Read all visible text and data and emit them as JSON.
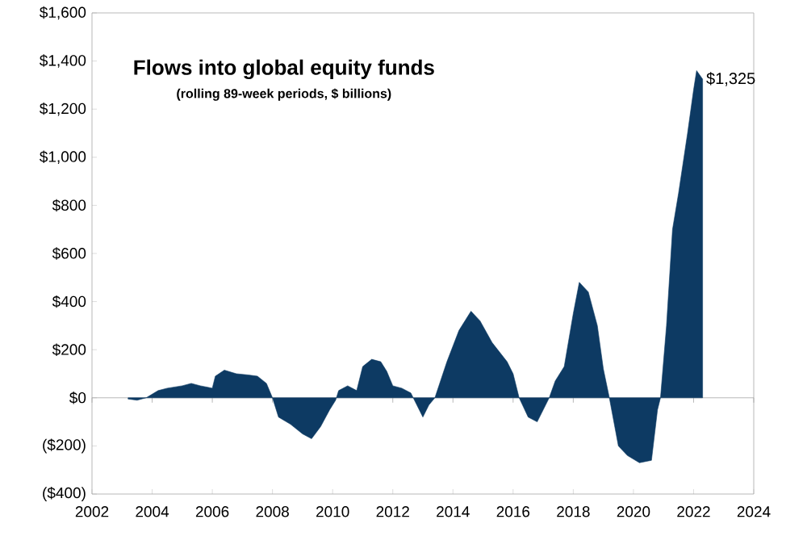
{
  "chart_data": {
    "type": "area",
    "title": "Flows into global equity funds",
    "subtitle": "(rolling 89-week periods, $ billions)",
    "x": [
      2003.2,
      2003.5,
      2003.8,
      2004.2,
      2004.5,
      2005.0,
      2005.3,
      2005.6,
      2006.0,
      2006.1,
      2006.4,
      2006.8,
      2007.2,
      2007.5,
      2007.8,
      2008.0,
      2008.2,
      2008.6,
      2009.0,
      2009.3,
      2009.6,
      2009.9,
      2010.1,
      2010.2,
      2010.5,
      2010.8,
      2011.0,
      2011.3,
      2011.6,
      2011.8,
      2012.0,
      2012.3,
      2012.6,
      2012.8,
      2013.0,
      2013.2,
      2013.4,
      2013.8,
      2014.2,
      2014.6,
      2014.9,
      2015.3,
      2015.8,
      2016.0,
      2016.2,
      2016.5,
      2016.8,
      2017.0,
      2017.2,
      2017.4,
      2017.7,
      2018.0,
      2018.2,
      2018.5,
      2018.8,
      2019.0,
      2019.2,
      2019.5,
      2019.8,
      2020.2,
      2020.6,
      2020.8,
      2020.9,
      2021.1,
      2021.3,
      2021.5,
      2021.8,
      2022.0,
      2022.1,
      2022.3
    ],
    "series": [
      {
        "color": "#0d3a63",
        "values": [
          -5,
          -10,
          0,
          30,
          40,
          50,
          60,
          50,
          40,
          90,
          115,
          100,
          95,
          90,
          60,
          0,
          -80,
          -110,
          -150,
          -170,
          -120,
          -50,
          -10,
          30,
          50,
          30,
          130,
          160,
          150,
          110,
          50,
          40,
          20,
          -30,
          -80,
          -30,
          0,
          150,
          280,
          360,
          320,
          230,
          150,
          100,
          0,
          -80,
          -100,
          -50,
          0,
          70,
          130,
          350,
          480,
          440,
          300,
          120,
          0,
          -200,
          -240,
          -270,
          -260,
          -50,
          0,
          300,
          700,
          850,
          1100,
          1280,
          1360,
          1325
        ]
      }
    ],
    "annotations": [
      {
        "text": "$1,325",
        "x": 2022.3,
        "y": 1325
      }
    ],
    "xlim": [
      2002,
      2024
    ],
    "xticks": [
      2002,
      2004,
      2006,
      2008,
      2010,
      2012,
      2014,
      2016,
      2018,
      2020,
      2022,
      2024
    ],
    "ylim": [
      -400,
      1600
    ],
    "yticks": [
      {
        "value": -400,
        "label": "($400)"
      },
      {
        "value": -200,
        "label": "($200)"
      },
      {
        "value": 0,
        "label": "$0"
      },
      {
        "value": 200,
        "label": "$200"
      },
      {
        "value": 400,
        "label": "$400"
      },
      {
        "value": 600,
        "label": "$600"
      },
      {
        "value": 800,
        "label": "$800"
      },
      {
        "value": 1000,
        "label": "$1,000"
      },
      {
        "value": 1200,
        "label": "$1,200"
      },
      {
        "value": 1400,
        "label": "$1,400"
      },
      {
        "value": 1600,
        "label": "$1,600"
      }
    ],
    "ref_lines": [
      {
        "axis": "y",
        "value": 0,
        "color": "#a6a6a6"
      }
    ],
    "grid": false
  }
}
